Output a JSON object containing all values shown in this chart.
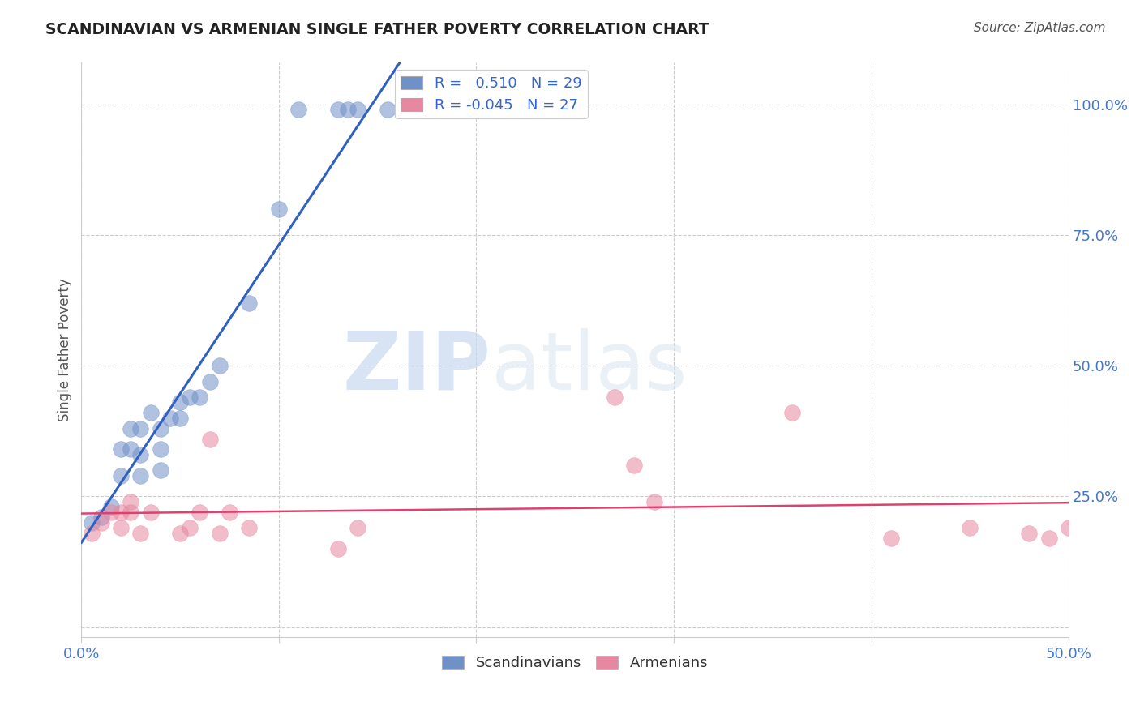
{
  "title": "SCANDINAVIAN VS ARMENIAN SINGLE FATHER POVERTY CORRELATION CHART",
  "source": "Source: ZipAtlas.com",
  "ylabel": "Single Father Poverty",
  "xlim": [
    0.0,
    0.5
  ],
  "ylim": [
    -0.02,
    1.08
  ],
  "xticks": [
    0.0,
    0.1,
    0.2,
    0.3,
    0.4,
    0.5
  ],
  "xticklabels": [
    "0.0%",
    "",
    "",
    "",
    "",
    "50.0%"
  ],
  "yticks": [
    0.0,
    0.25,
    0.5,
    0.75,
    1.0
  ],
  "yticklabels": [
    "",
    "25.0%",
    "50.0%",
    "75.0%",
    "100.0%"
  ],
  "blue_R": 0.51,
  "blue_N": 29,
  "pink_R": -0.045,
  "pink_N": 27,
  "blue_color": "#7090c8",
  "pink_color": "#e887a0",
  "blue_line_color": "#3060c0",
  "pink_line_color": "#e04070",
  "scandinavian_x": [
    0.005,
    0.01,
    0.015,
    0.02,
    0.02,
    0.025,
    0.025,
    0.03,
    0.03,
    0.03,
    0.035,
    0.04,
    0.04,
    0.04,
    0.045,
    0.05,
    0.05,
    0.055,
    0.06,
    0.065,
    0.07,
    0.085,
    0.1,
    0.11,
    0.13,
    0.135,
    0.14,
    0.155,
    0.17
  ],
  "scandinavian_y": [
    0.2,
    0.21,
    0.23,
    0.29,
    0.34,
    0.34,
    0.38,
    0.29,
    0.33,
    0.38,
    0.41,
    0.3,
    0.34,
    0.38,
    0.4,
    0.4,
    0.43,
    0.44,
    0.44,
    0.47,
    0.5,
    0.62,
    0.8,
    0.99,
    0.99,
    0.99,
    0.99,
    0.99,
    0.99
  ],
  "armenian_x": [
    0.005,
    0.01,
    0.015,
    0.02,
    0.02,
    0.025,
    0.025,
    0.03,
    0.035,
    0.05,
    0.055,
    0.06,
    0.065,
    0.07,
    0.075,
    0.085,
    0.13,
    0.14,
    0.27,
    0.28,
    0.29,
    0.36,
    0.41,
    0.45,
    0.48,
    0.49,
    0.5
  ],
  "armenian_y": [
    0.18,
    0.2,
    0.22,
    0.19,
    0.22,
    0.22,
    0.24,
    0.18,
    0.22,
    0.18,
    0.19,
    0.22,
    0.36,
    0.18,
    0.22,
    0.19,
    0.15,
    0.19,
    0.44,
    0.31,
    0.24,
    0.41,
    0.17,
    0.19,
    0.18,
    0.17,
    0.19
  ],
  "watermark_zip": "ZIP",
  "watermark_atlas": "atlas",
  "background_color": "#ffffff",
  "grid_color": "#cccccc",
  "tick_color": "#4477cc",
  "legend_r_color": "#3366cc",
  "legend_n_color": "#3366cc"
}
